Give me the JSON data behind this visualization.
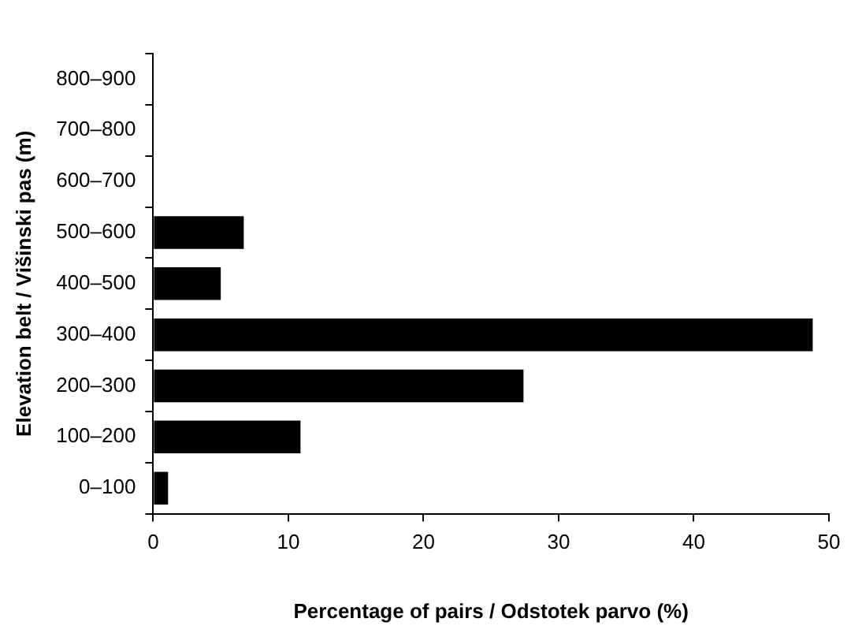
{
  "chart_data": {
    "type": "bar",
    "orientation": "horizontal",
    "categories": [
      "800–900",
      "700–800",
      "600–700",
      "500–600",
      "400–500",
      "300–400",
      "200–300",
      "100–200",
      "0–100"
    ],
    "values": [
      0,
      0,
      0,
      6.7,
      5.0,
      48.8,
      27.4,
      10.9,
      1.1
    ],
    "color": "#000000",
    "xlim": [
      0,
      50
    ],
    "xticks": [
      0,
      10,
      20,
      30,
      40,
      50
    ],
    "xlabel": "Percentage of pairs / Odstotek parvo (%)",
    "ylabel": "Elevation belt / Višinski pas (m)",
    "grid": false,
    "legend": false
  }
}
